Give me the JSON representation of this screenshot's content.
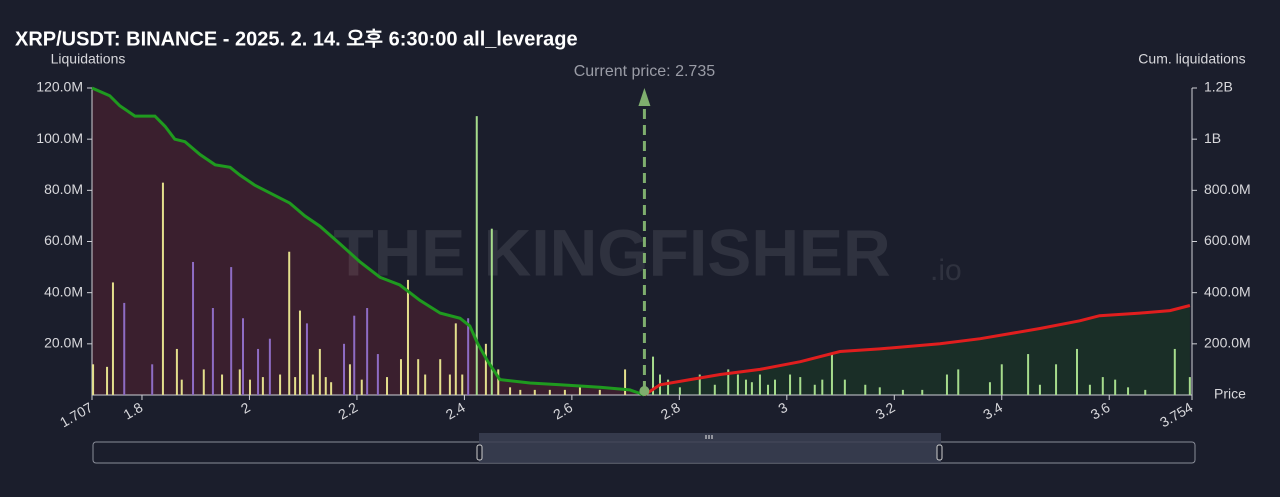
{
  "chart_data": {
    "type": "liquidation",
    "title": "XRP/USDT: BINANCE - 2025. 2. 14. 오후 6:30:00 all_leverage",
    "y_label": "Liquidations",
    "y2_label": "Cum. liquidations",
    "x_label": "Price",
    "annotation": "Current price: 2.735",
    "current_price": 2.735,
    "watermark": "THE KINGFISHER",
    "watermark_suffix": ".io",
    "xlim": [
      1.707,
      3.754
    ],
    "xticks": [
      1.707,
      1.8,
      2,
      2.2,
      2.4,
      2.6,
      2.8,
      3,
      3.2,
      3.4,
      3.6,
      3.754
    ],
    "ylim": [
      0,
      120000000
    ],
    "yticks": [
      {
        "value": 20000000,
        "label": "20.0M"
      },
      {
        "value": 40000000,
        "label": "40.0M"
      },
      {
        "value": 60000000,
        "label": "60.0M"
      },
      {
        "value": 80000000,
        "label": "80.0M"
      },
      {
        "value": 100000000,
        "label": "100.0M"
      },
      {
        "value": 120000000,
        "label": "120.0M"
      }
    ],
    "y2lim": [
      0,
      1200000000
    ],
    "y2ticks": [
      {
        "value": 200000000,
        "label": "200.0M"
      },
      {
        "value": 400000000,
        "label": "400.0M"
      },
      {
        "value": 600000000,
        "label": "600.0M"
      },
      {
        "value": 800000000,
        "label": "800.0M"
      },
      {
        "value": 1000000000,
        "label": "1B"
      },
      {
        "value": 1200000000,
        "label": "1.2B"
      }
    ],
    "series": [
      {
        "kind": "bar",
        "color": "#e4df8c",
        "x": [
          1.709,
          1.735,
          1.746,
          1.839,
          1.865,
          1.874,
          1.915,
          1.949,
          1.982,
          2.001,
          2.025,
          2.057,
          2.074,
          2.085,
          2.094,
          2.118,
          2.131,
          2.142,
          2.152,
          2.187,
          2.209,
          2.256,
          2.282,
          2.295,
          2.314,
          2.327,
          2.355,
          2.373,
          2.384,
          2.396,
          2.44,
          2.463,
          2.485,
          2.504,
          2.531,
          2.559,
          2.587,
          2.615,
          2.652,
          2.699
        ],
        "values": [
          12000000,
          11000000,
          44000000,
          83000000,
          18000000,
          6000000,
          10000000,
          8000000,
          10000000,
          6000000,
          7000000,
          8000000,
          56000000,
          7000000,
          33000000,
          8000000,
          18000000,
          7000000,
          5000000,
          12000000,
          6000000,
          7000000,
          14000000,
          45000000,
          14000000,
          8000000,
          14000000,
          8000000,
          28000000,
          8000000,
          20000000,
          10000000,
          3000000,
          2000000,
          2000000,
          2000000,
          2000000,
          3000000,
          2000000,
          10000000
        ]
      },
      {
        "kind": "bar",
        "color": "#8e6cc4",
        "x": [
          1.767,
          1.819,
          1.895,
          1.932,
          1.966,
          1.988,
          2.016,
          2.038,
          2.107,
          2.176,
          2.195,
          2.219,
          2.239,
          2.407
        ],
        "values": [
          36000000,
          12000000,
          52000000,
          34000000,
          50000000,
          30000000,
          18000000,
          22000000,
          28000000,
          20000000,
          31000000,
          34000000,
          16000000,
          30000000
        ]
      },
      {
        "kind": "bar",
        "color": "#a6dc8c",
        "x": [
          2.423,
          2.451,
          2.751,
          2.764,
          2.779,
          2.801,
          2.838,
          2.866,
          2.891,
          2.909,
          2.924,
          2.935,
          2.95,
          2.965,
          2.978,
          3.006,
          3.025,
          3.052,
          3.066,
          3.084,
          3.108,
          3.146,
          3.173,
          3.216,
          3.252,
          3.298,
          3.319,
          3.378,
          3.4,
          3.449,
          3.471,
          3.501,
          3.54,
          3.564,
          3.588,
          3.611,
          3.635,
          3.667,
          3.722,
          3.75
        ],
        "values": [
          109000000,
          65000000,
          15000000,
          8000000,
          6000000,
          3000000,
          8000000,
          4000000,
          10000000,
          8000000,
          6000000,
          5000000,
          8000000,
          4000000,
          6000000,
          8000000,
          7000000,
          4000000,
          6000000,
          16000000,
          6000000,
          4000000,
          3000000,
          2000000,
          2000000,
          8000000,
          10000000,
          5000000,
          12000000,
          16000000,
          4000000,
          12000000,
          18000000,
          4000000,
          7000000,
          6000000,
          3000000,
          2000000,
          18000000,
          7000000
        ]
      },
      {
        "kind": "line",
        "axis": "y2",
        "color": "#1f9a1f",
        "fill": "#3a1f2e",
        "x": [
          1.707,
          1.74,
          1.759,
          1.787,
          1.824,
          1.843,
          1.861,
          1.88,
          1.908,
          1.936,
          1.964,
          1.982,
          2.01,
          2.038,
          2.075,
          2.103,
          2.131,
          2.169,
          2.206,
          2.243,
          2.28,
          2.317,
          2.355,
          2.392,
          2.41,
          2.425,
          2.444,
          2.466,
          2.522,
          2.578,
          2.652,
          2.708,
          2.735
        ],
        "values": [
          1200000000,
          1170000000,
          1130000000,
          1090000000,
          1090000000,
          1050000000,
          1000000000,
          990000000,
          940000000,
          900000000,
          890000000,
          860000000,
          820000000,
          790000000,
          750000000,
          700000000,
          660000000,
          590000000,
          520000000,
          460000000,
          430000000,
          370000000,
          320000000,
          300000000,
          270000000,
          200000000,
          130000000,
          60000000,
          47000000,
          40000000,
          30000000,
          20000000,
          0
        ]
      },
      {
        "kind": "line",
        "axis": "y2",
        "color": "#e01e1e",
        "fill": "#1a2e27",
        "x": [
          2.735,
          2.764,
          2.82,
          2.876,
          2.95,
          3.025,
          3.099,
          3.173,
          3.285,
          3.36,
          3.471,
          3.545,
          3.582,
          3.657,
          3.713,
          3.75
        ],
        "values": [
          0,
          40000000,
          60000000,
          80000000,
          100000000,
          130000000,
          170000000,
          180000000,
          200000000,
          220000000,
          260000000,
          290000000,
          310000000,
          320000000,
          330000000,
          350000000
        ]
      }
    ]
  }
}
